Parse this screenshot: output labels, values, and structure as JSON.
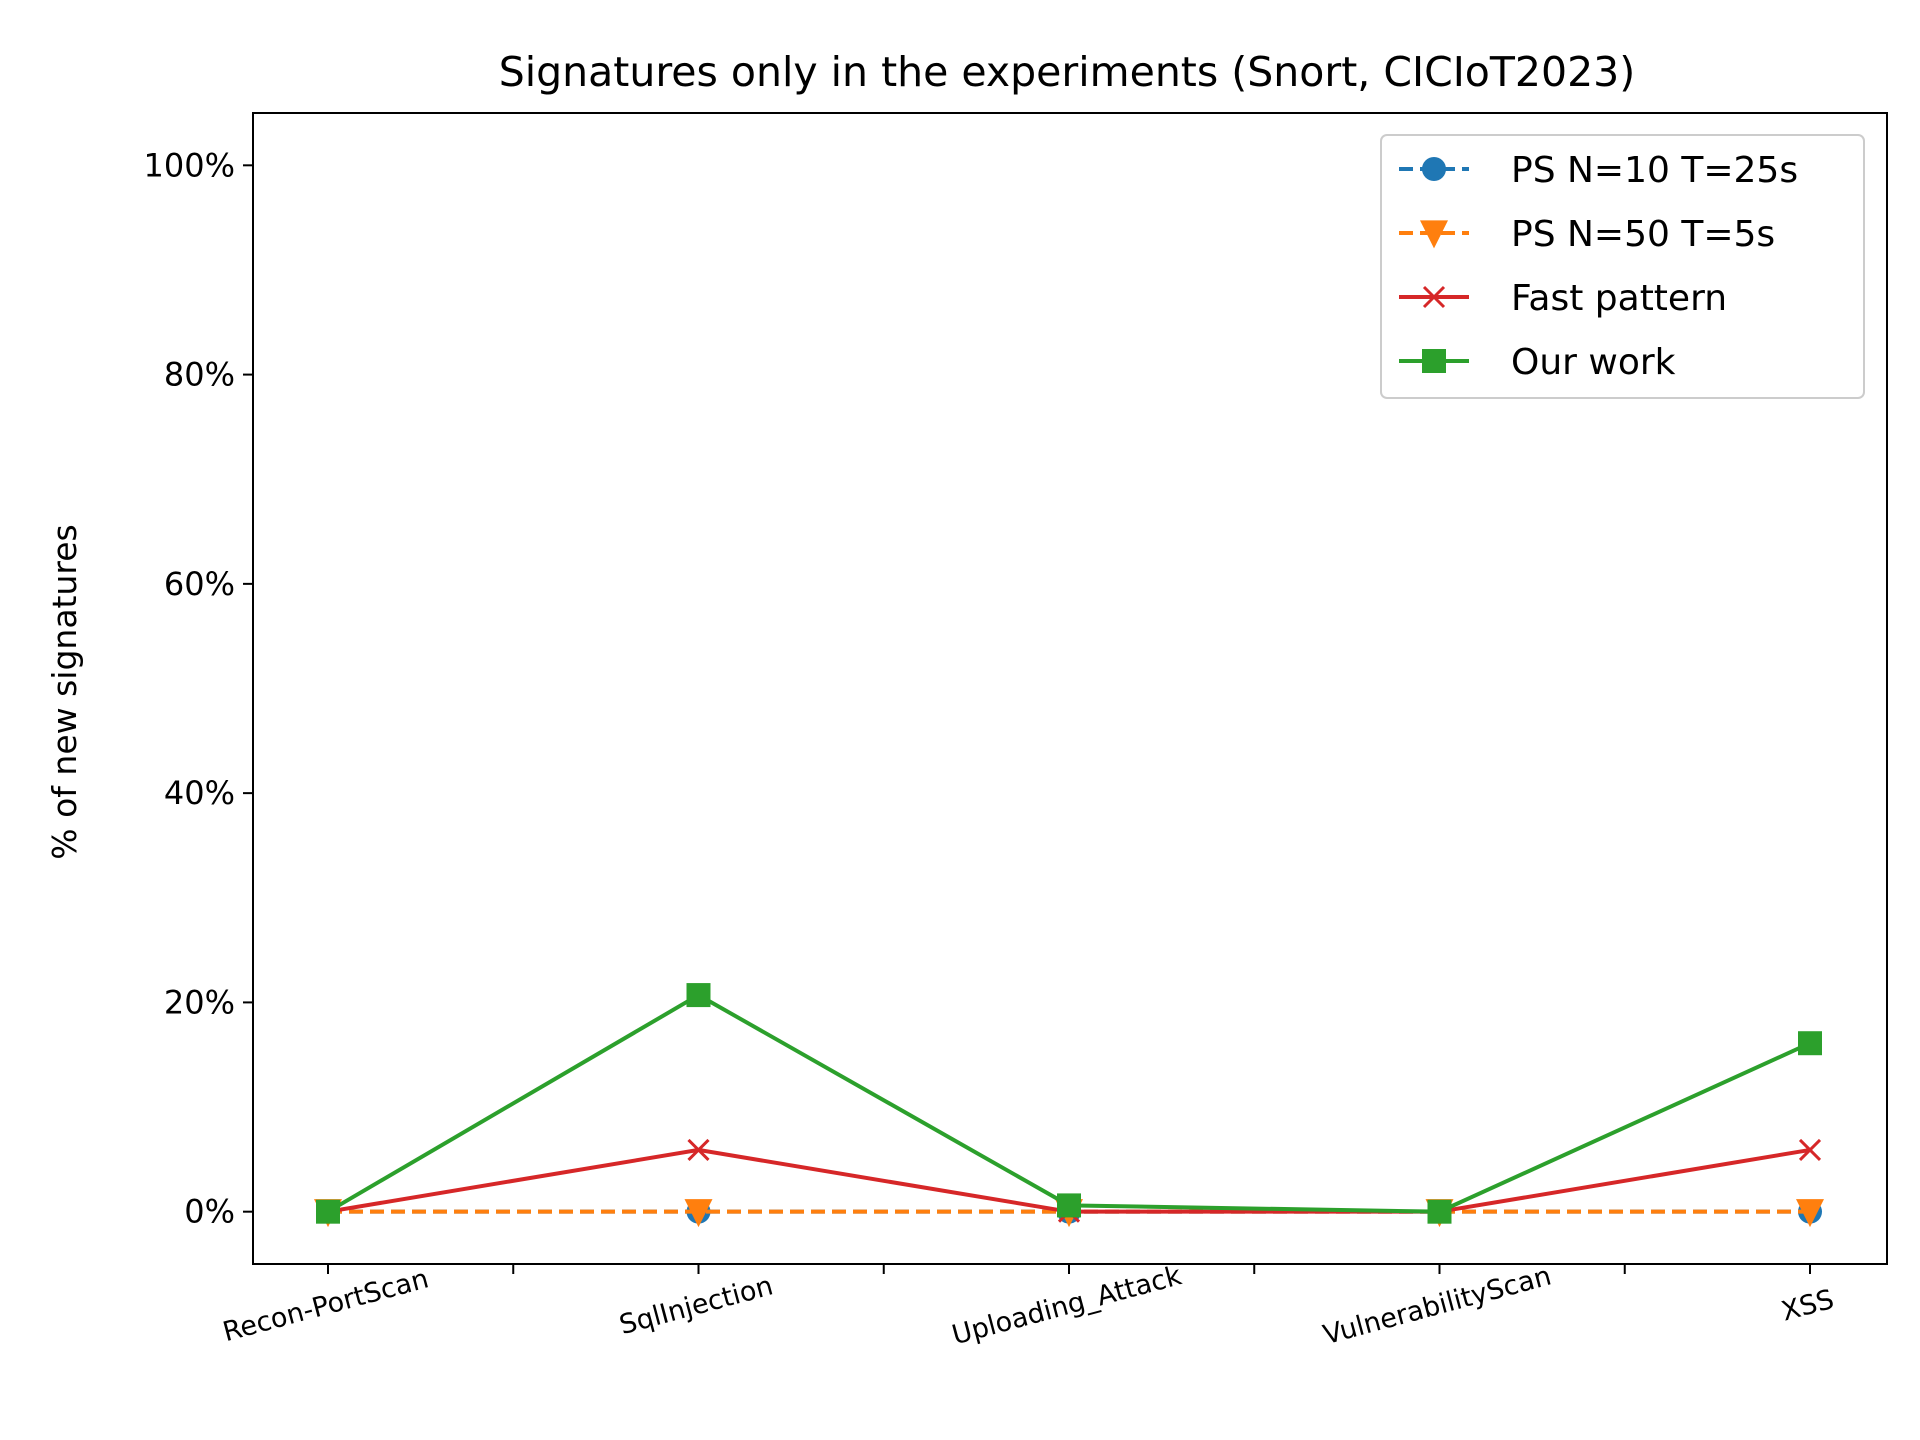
{
  "chart_data": {
    "type": "line",
    "title": "Signatures only in the experiments (Snort, CICIoT2023)",
    "xlabel": "",
    "ylabel": "% of new signatures",
    "categories": [
      "Recon-PortScan",
      "SqlInjection",
      "Uploading_Attack",
      "VulnerabilityScan",
      "XSS"
    ],
    "ylim": [
      -5,
      105
    ],
    "yticks": [
      0,
      20,
      40,
      60,
      80,
      100
    ],
    "ytick_labels": [
      "0%",
      "20%",
      "40%",
      "60%",
      "80%",
      "100%"
    ],
    "grid": false,
    "legend_position": "top-right",
    "series": [
      {
        "name": "PS N=10 T=25s",
        "values": [
          0,
          0,
          0,
          0,
          0
        ],
        "color": "#1f77b4",
        "marker": "circle",
        "linestyle": "dashed"
      },
      {
        "name": "PS N=50 T=5s",
        "values": [
          0,
          0,
          0,
          0,
          0
        ],
        "color": "#ff7f0e",
        "marker": "triangle-down",
        "linestyle": "dashed"
      },
      {
        "name": "Fast pattern",
        "values": [
          0,
          5.9,
          0,
          0,
          5.9
        ],
        "color": "#d62728",
        "marker": "x",
        "linestyle": "solid"
      },
      {
        "name": "Our work",
        "values": [
          0,
          20.7,
          0.6,
          0,
          16.1
        ],
        "color": "#2ca02c",
        "marker": "square",
        "linestyle": "solid"
      }
    ]
  }
}
